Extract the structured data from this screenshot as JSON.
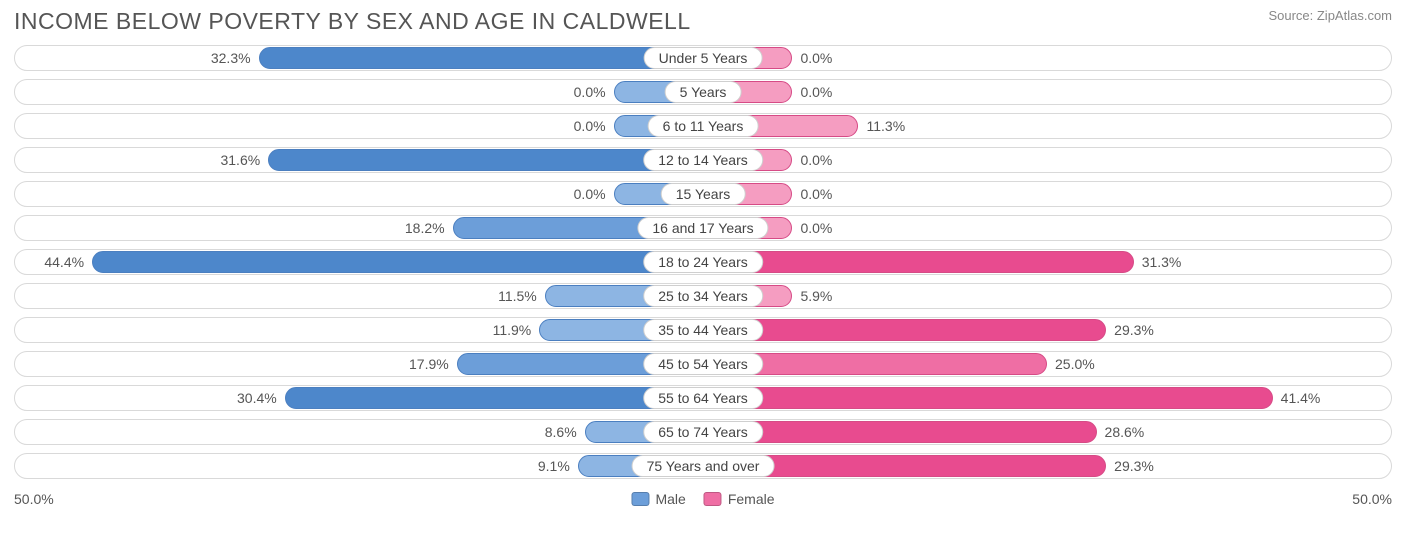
{
  "title": "INCOME BELOW POVERTY BY SEX AND AGE IN CALDWELL",
  "source": "Source: ZipAtlas.com",
  "axis_max": 50.0,
  "axis_label": "50.0%",
  "legend": {
    "male": "Male",
    "female": "Female"
  },
  "min_bar_pct": 13.0,
  "colors": {
    "male_base": "#6c9ed9",
    "male_border": "#4b7fc0",
    "female_base": "#ef6ea4",
    "female_border": "#d64b86",
    "row_border": "#d9d9d9",
    "text": "#555555",
    "title": "#555555",
    "source": "#888888",
    "background": "#ffffff"
  },
  "type": "diverging-bar",
  "font": {
    "title_size": 23,
    "label_size": 14
  },
  "rows": [
    {
      "label": "Under 5 Years",
      "male": 32.3,
      "female": 0.0
    },
    {
      "label": "5 Years",
      "male": 0.0,
      "female": 0.0
    },
    {
      "label": "6 to 11 Years",
      "male": 0.0,
      "female": 11.3
    },
    {
      "label": "12 to 14 Years",
      "male": 31.6,
      "female": 0.0
    },
    {
      "label": "15 Years",
      "male": 0.0,
      "female": 0.0
    },
    {
      "label": "16 and 17 Years",
      "male": 18.2,
      "female": 0.0
    },
    {
      "label": "18 to 24 Years",
      "male": 44.4,
      "female": 31.3
    },
    {
      "label": "25 to 34 Years",
      "male": 11.5,
      "female": 5.9
    },
    {
      "label": "35 to 44 Years",
      "male": 11.9,
      "female": 29.3
    },
    {
      "label": "45 to 54 Years",
      "male": 17.9,
      "female": 25.0
    },
    {
      "label": "55 to 64 Years",
      "male": 30.4,
      "female": 41.4
    },
    {
      "label": "65 to 74 Years",
      "male": 8.6,
      "female": 28.6
    },
    {
      "label": "75 Years and over",
      "male": 9.1,
      "female": 29.3
    }
  ]
}
